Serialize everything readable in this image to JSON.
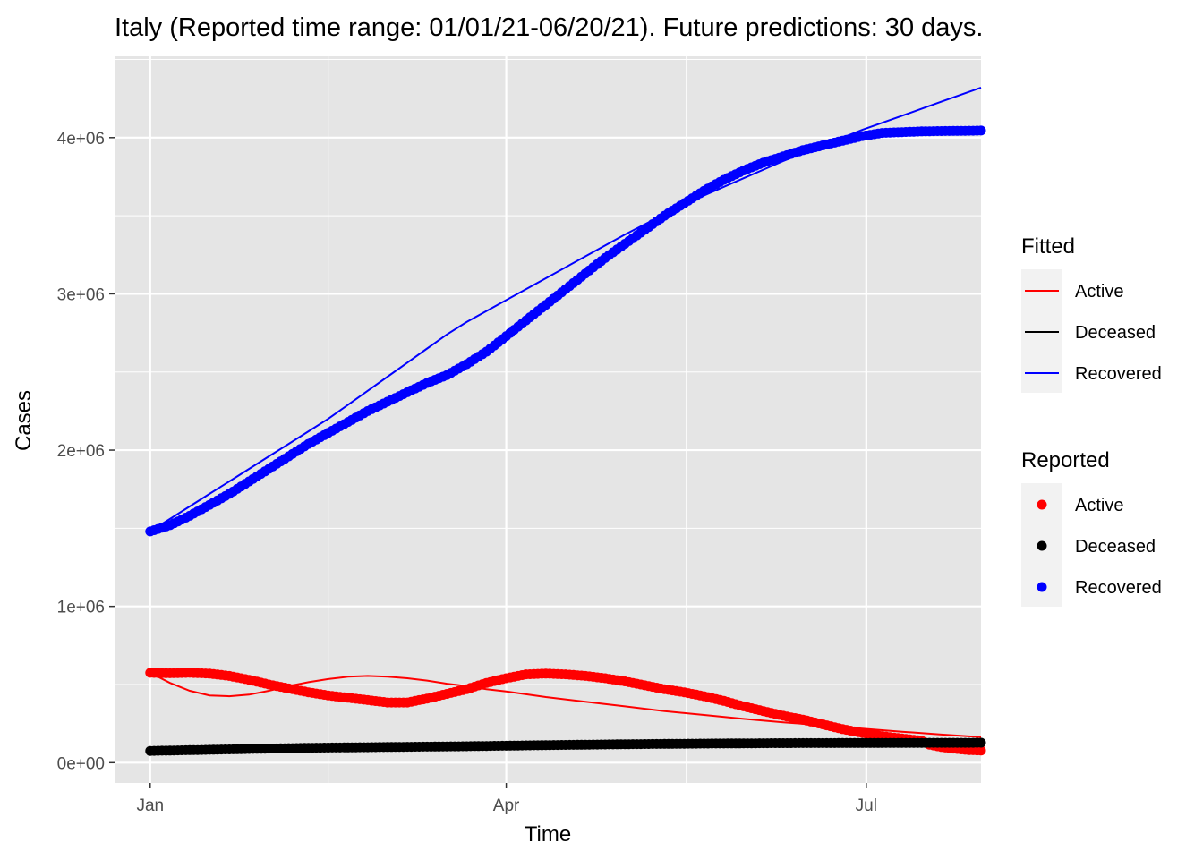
{
  "chart_data": {
    "type": "line",
    "title": "Italy (Reported time range: 01/01/21-06/20/21). Future predictions: 30 days.",
    "xlabel": "Time",
    "ylabel": "Cases",
    "x_ticks": [
      {
        "label": "Jan",
        "day": 0
      },
      {
        "label": "Apr",
        "day": 90
      },
      {
        "label": "Jul",
        "day": 181
      }
    ],
    "x_range_days": [
      -9,
      210
    ],
    "y_ticks": [
      {
        "label": "0e+00",
        "value": 0
      },
      {
        "label": "1e+06",
        "value": 1000000
      },
      {
        "label": "2e+06",
        "value": 2000000
      },
      {
        "label": "3e+06",
        "value": 3000000
      },
      {
        "label": "4e+06",
        "value": 4000000
      }
    ],
    "ylim": [
      -130000,
      4520000
    ],
    "grid": true,
    "x_day_note": "days since 01/01/21",
    "legend": {
      "position": "right",
      "fitted_title": "Fitted",
      "reported_title": "Reported",
      "fitted_entries": [
        "Active",
        "Deceased",
        "Recovered"
      ],
      "reported_entries": [
        "Active",
        "Deceased",
        "Recovered"
      ]
    },
    "colors": {
      "Active": "#ff0000",
      "Deceased": "#000000",
      "Recovered": "#0000ff"
    },
    "reported_series": [
      {
        "name": "Active",
        "points": [
          [
            0,
            575000
          ],
          [
            5,
            572000
          ],
          [
            10,
            575000
          ],
          [
            15,
            570000
          ],
          [
            20,
            555000
          ],
          [
            25,
            530000
          ],
          [
            30,
            500000
          ],
          [
            35,
            475000
          ],
          [
            40,
            450000
          ],
          [
            45,
            430000
          ],
          [
            50,
            415000
          ],
          [
            55,
            400000
          ],
          [
            60,
            385000
          ],
          [
            65,
            385000
          ],
          [
            70,
            410000
          ],
          [
            75,
            440000
          ],
          [
            80,
            470000
          ],
          [
            85,
            510000
          ],
          [
            90,
            540000
          ],
          [
            95,
            565000
          ],
          [
            100,
            570000
          ],
          [
            105,
            565000
          ],
          [
            110,
            555000
          ],
          [
            115,
            540000
          ],
          [
            120,
            520000
          ],
          [
            125,
            495000
          ],
          [
            130,
            470000
          ],
          [
            135,
            450000
          ],
          [
            140,
            425000
          ],
          [
            145,
            395000
          ],
          [
            150,
            360000
          ],
          [
            155,
            330000
          ],
          [
            160,
            300000
          ],
          [
            165,
            275000
          ],
          [
            170,
            245000
          ],
          [
            175,
            215000
          ],
          [
            180,
            190000
          ],
          [
            185,
            170000
          ],
          [
            190,
            155000
          ],
          [
            195,
            140000
          ],
          [
            197,
            115000
          ],
          [
            200,
            100000
          ],
          [
            203,
            90000
          ],
          [
            205,
            85000
          ],
          [
            207,
            80000
          ],
          [
            210,
            78000
          ]
        ]
      },
      {
        "name": "Deceased",
        "points": [
          [
            0,
            75000
          ],
          [
            20,
            85000
          ],
          [
            40,
            95000
          ],
          [
            60,
            100000
          ],
          [
            80,
            105000
          ],
          [
            100,
            112000
          ],
          [
            120,
            118000
          ],
          [
            140,
            122000
          ],
          [
            160,
            125000
          ],
          [
            180,
            126000
          ],
          [
            200,
            127000
          ],
          [
            210,
            127500
          ]
        ]
      },
      {
        "name": "Recovered",
        "points": [
          [
            0,
            1480000
          ],
          [
            5,
            1520000
          ],
          [
            10,
            1580000
          ],
          [
            15,
            1650000
          ],
          [
            20,
            1720000
          ],
          [
            25,
            1800000
          ],
          [
            30,
            1880000
          ],
          [
            35,
            1960000
          ],
          [
            40,
            2040000
          ],
          [
            45,
            2110000
          ],
          [
            50,
            2180000
          ],
          [
            55,
            2250000
          ],
          [
            60,
            2310000
          ],
          [
            65,
            2370000
          ],
          [
            70,
            2430000
          ],
          [
            75,
            2480000
          ],
          [
            80,
            2550000
          ],
          [
            85,
            2630000
          ],
          [
            90,
            2730000
          ],
          [
            95,
            2830000
          ],
          [
            100,
            2930000
          ],
          [
            105,
            3030000
          ],
          [
            110,
            3130000
          ],
          [
            115,
            3230000
          ],
          [
            120,
            3320000
          ],
          [
            125,
            3410000
          ],
          [
            130,
            3500000
          ],
          [
            135,
            3580000
          ],
          [
            140,
            3660000
          ],
          [
            145,
            3730000
          ],
          [
            150,
            3790000
          ],
          [
            155,
            3840000
          ],
          [
            160,
            3880000
          ],
          [
            165,
            3920000
          ],
          [
            170,
            3950000
          ],
          [
            175,
            3980000
          ],
          [
            180,
            4010000
          ],
          [
            185,
            4030000
          ],
          [
            190,
            4035000
          ],
          [
            195,
            4040000
          ],
          [
            200,
            4042000
          ],
          [
            210,
            4045000
          ]
        ]
      }
    ],
    "fitted_series": [
      {
        "name": "Active",
        "points": [
          [
            0,
            575000
          ],
          [
            5,
            510000
          ],
          [
            10,
            460000
          ],
          [
            15,
            430000
          ],
          [
            20,
            425000
          ],
          [
            25,
            435000
          ],
          [
            30,
            460000
          ],
          [
            35,
            490000
          ],
          [
            40,
            515000
          ],
          [
            45,
            535000
          ],
          [
            50,
            550000
          ],
          [
            55,
            555000
          ],
          [
            60,
            550000
          ],
          [
            65,
            540000
          ],
          [
            70,
            525000
          ],
          [
            75,
            505000
          ],
          [
            80,
            490000
          ],
          [
            85,
            470000
          ],
          [
            90,
            455000
          ],
          [
            100,
            420000
          ],
          [
            110,
            390000
          ],
          [
            120,
            360000
          ],
          [
            130,
            330000
          ],
          [
            140,
            305000
          ],
          [
            150,
            280000
          ],
          [
            160,
            258000
          ],
          [
            170,
            238000
          ],
          [
            180,
            218000
          ],
          [
            190,
            198000
          ],
          [
            200,
            180000
          ],
          [
            210,
            163000
          ]
        ]
      },
      {
        "name": "Deceased",
        "points": [
          [
            0,
            75000
          ],
          [
            20,
            85000
          ],
          [
            40,
            95000
          ],
          [
            60,
            100000
          ],
          [
            80,
            105000
          ],
          [
            100,
            110000
          ],
          [
            120,
            114000
          ],
          [
            140,
            117000
          ],
          [
            160,
            119000
          ],
          [
            180,
            120000
          ],
          [
            200,
            120500
          ],
          [
            210,
            121000
          ]
        ]
      },
      {
        "name": "Recovered",
        "points": [
          [
            0,
            1480000
          ],
          [
            5,
            1560000
          ],
          [
            10,
            1640000
          ],
          [
            15,
            1720000
          ],
          [
            20,
            1800000
          ],
          [
            25,
            1880000
          ],
          [
            30,
            1960000
          ],
          [
            35,
            2040000
          ],
          [
            40,
            2120000
          ],
          [
            45,
            2200000
          ],
          [
            50,
            2290000
          ],
          [
            55,
            2380000
          ],
          [
            60,
            2470000
          ],
          [
            65,
            2560000
          ],
          [
            70,
            2650000
          ],
          [
            75,
            2740000
          ],
          [
            80,
            2820000
          ],
          [
            85,
            2890000
          ],
          [
            90,
            2960000
          ],
          [
            100,
            3100000
          ],
          [
            110,
            3240000
          ],
          [
            120,
            3380000
          ],
          [
            130,
            3510000
          ],
          [
            140,
            3630000
          ],
          [
            150,
            3740000
          ],
          [
            160,
            3850000
          ],
          [
            170,
            3950000
          ],
          [
            180,
            4050000
          ],
          [
            190,
            4140000
          ],
          [
            200,
            4230000
          ],
          [
            210,
            4320000
          ]
        ]
      }
    ]
  }
}
